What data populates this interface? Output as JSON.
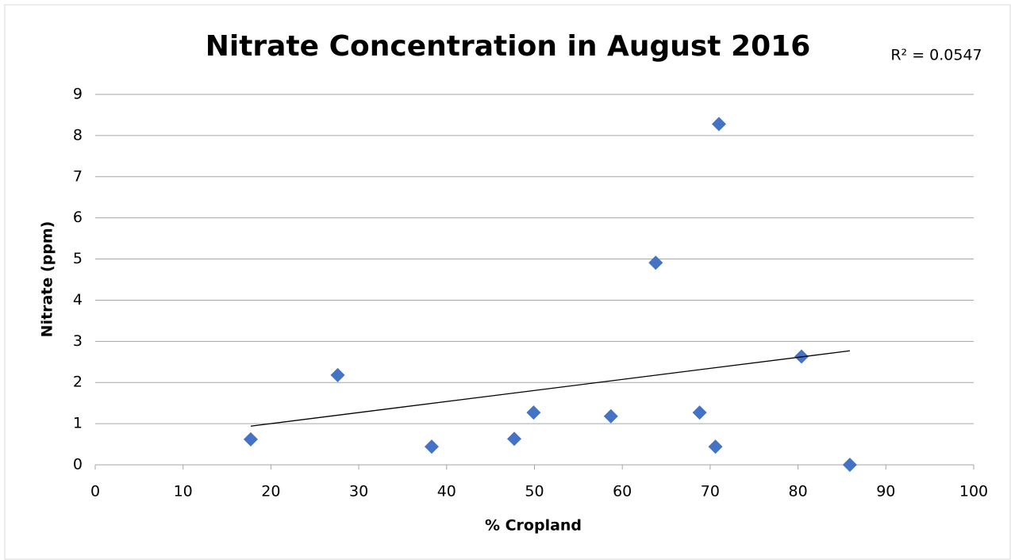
{
  "chart_data": {
    "type": "scatter",
    "title": "Nitrate Concentration in August 2016",
    "annotation": "R² = 0.0547",
    "x_label": "% Cropland",
    "y_label": "Nitrate (ppm)",
    "series": [
      {
        "name": "Nitrate",
        "color": "#4472c4",
        "x": [
          17.7,
          27.6,
          38.3,
          47.7,
          49.9,
          58.7,
          63.8,
          68.8,
          70.6,
          71.0,
          80.4,
          85.9
        ],
        "values": [
          0.62,
          2.18,
          0.44,
          0.63,
          1.27,
          1.18,
          4.91,
          1.27,
          0.44,
          8.28,
          2.63,
          0
        ]
      }
    ],
    "trendline": {
      "color": "#000000",
      "x": [
        17.7,
        85.9
      ],
      "values": [
        0.94,
        2.77
      ]
    },
    "xlim": [
      0,
      100
    ],
    "xticks": [
      0,
      10,
      20,
      30,
      40,
      50,
      60,
      70,
      80,
      90,
      100
    ],
    "ylim": [
      0,
      9
    ],
    "yticks": [
      0,
      1,
      2,
      3,
      4,
      5,
      6,
      7,
      8,
      9
    ],
    "grid": true
  }
}
